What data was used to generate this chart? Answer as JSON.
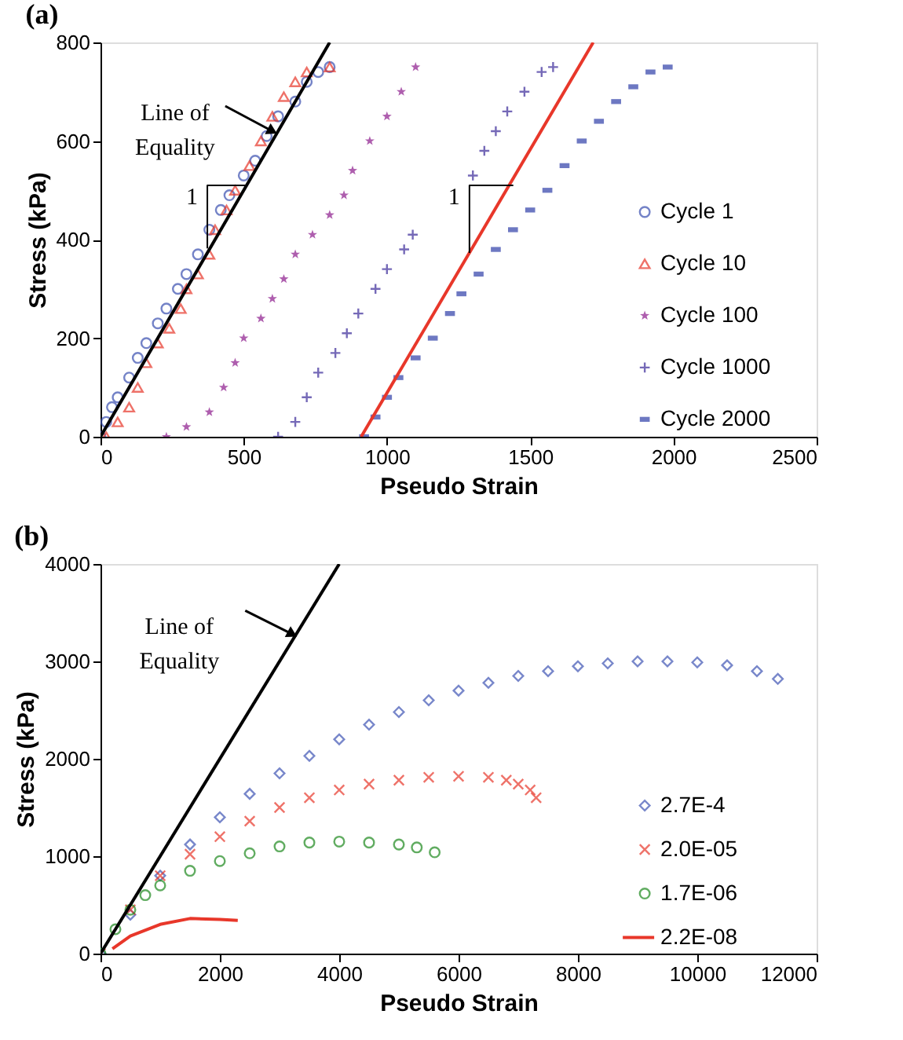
{
  "chart_data": [
    {
      "type": "scatter",
      "title": "(a)",
      "xlabel": "Pseudo Strain",
      "ylabel": "Stress (kPa)",
      "xlim": [
        0,
        2500
      ],
      "ylim": [
        0,
        800
      ],
      "xticks": [
        0,
        500,
        1000,
        1500,
        2000,
        2500
      ],
      "yticks": [
        0,
        200,
        400,
        600,
        800
      ],
      "grid": false,
      "legend": "right",
      "annotations": [
        {
          "text": "Line of\nEquality",
          "x": 600,
          "y": 620
        },
        {
          "text": "1",
          "x": 373,
          "y": 510
        },
        {
          "text": "1",
          "x": 1288,
          "y": 510
        }
      ],
      "series": [
        {
          "name": "Cycle 1",
          "color": "#3a4fb0",
          "marker": "circle",
          "x": [
            0,
            20,
            40,
            60,
            100,
            130,
            160,
            200,
            230,
            270,
            300,
            340,
            380,
            420,
            450,
            500,
            540,
            580,
            620,
            680,
            720,
            760,
            800
          ],
          "values": [
            0,
            30,
            60,
            80,
            120,
            160,
            190,
            230,
            260,
            300,
            330,
            370,
            420,
            460,
            490,
            530,
            560,
            610,
            650,
            680,
            720,
            740,
            750
          ]
        },
        {
          "name": "Cycle 10",
          "color": "#e8372a",
          "marker": "triangle",
          "x": [
            20,
            60,
            100,
            130,
            160,
            200,
            240,
            280,
            300,
            340,
            380,
            400,
            440,
            470,
            520,
            560,
            600,
            640,
            680,
            720,
            800
          ],
          "values": [
            0,
            30,
            60,
            100,
            150,
            190,
            220,
            260,
            300,
            330,
            370,
            420,
            460,
            500,
            550,
            600,
            650,
            690,
            720,
            740,
            750
          ]
        },
        {
          "name": "Cycle 100",
          "color": "#8b1a8b",
          "marker": "star",
          "x": [
            230,
            300,
            380,
            430,
            470,
            500,
            560,
            600,
            640,
            680,
            740,
            800,
            850,
            880,
            940,
            1000,
            1050,
            1100
          ],
          "values": [
            0,
            20,
            50,
            100,
            150,
            200,
            240,
            280,
            320,
            370,
            410,
            450,
            490,
            540,
            600,
            650,
            700,
            750
          ]
        },
        {
          "name": "Cycle 1000",
          "color": "#3b2a9a",
          "marker": "cross",
          "x": [
            620,
            680,
            720,
            760,
            820,
            860,
            900,
            960,
            1000,
            1060,
            1090,
            1300,
            1340,
            1380,
            1420,
            1480,
            1540,
            1580
          ],
          "values": [
            0,
            30,
            80,
            130,
            170,
            210,
            250,
            300,
            340,
            380,
            410,
            530,
            580,
            620,
            660,
            700,
            740,
            750
          ]
        },
        {
          "name": "Cycle 2000",
          "color": "#2f3fa8",
          "marker": "square",
          "x": [
            920,
            960,
            1000,
            1040,
            1100,
            1160,
            1220,
            1260,
            1320,
            1380,
            1440,
            1500,
            1560,
            1620,
            1680,
            1740,
            1800,
            1860,
            1920,
            1980
          ],
          "values": [
            0,
            40,
            80,
            120,
            160,
            200,
            250,
            290,
            330,
            380,
            420,
            460,
            500,
            550,
            600,
            640,
            680,
            710,
            740,
            750
          ]
        },
        {
          "type": "line",
          "color": "#000000",
          "x": [
            0,
            800
          ],
          "values": [
            0,
            800
          ]
        },
        {
          "type": "line",
          "color": "#e8372a",
          "x": [
            910,
            1720
          ],
          "values": [
            0,
            800
          ]
        },
        {
          "type": "line",
          "color": "#000000",
          "x": [
            510,
            373,
            373
          ],
          "values": [
            510,
            510,
            382
          ]
        },
        {
          "type": "line",
          "color": "#000000",
          "x": [
            1441,
            1288,
            1288
          ],
          "values": [
            510,
            510,
            373
          ]
        }
      ]
    },
    {
      "type": "scatter",
      "title": "(b)",
      "xlabel": "Pseudo Strain",
      "ylabel": "Stress (kPa)",
      "xlim": [
        0,
        12000
      ],
      "ylim": [
        0,
        4000
      ],
      "xticks": [
        0,
        2000,
        4000,
        6000,
        8000,
        10000,
        12000
      ],
      "yticks": [
        0,
        1000,
        2000,
        3000,
        4000
      ],
      "grid": false,
      "legend": "bottom right",
      "annotations": [
        "Line of\nEquality"
      ],
      "series": [
        {
          "name": "2.7E-4",
          "color": "#3f55b5",
          "marker": "diamond",
          "x": [
            0,
            500,
            1000,
            1500,
            2000,
            2500,
            3000,
            3500,
            4000,
            4500,
            5000,
            5500,
            6000,
            6500,
            7000,
            7500,
            8000,
            8500,
            9000,
            9500,
            10000,
            10500,
            11000,
            11350
          ],
          "values": [
            0,
            400,
            800,
            1120,
            1400,
            1640,
            1850,
            2030,
            2200,
            2350,
            2480,
            2600,
            2700,
            2780,
            2850,
            2900,
            2950,
            2980,
            3000,
            3000,
            2990,
            2960,
            2900,
            2820
          ]
        },
        {
          "name": "2.0E-05",
          "color": "#e8372a",
          "marker": "x",
          "x": [
            0,
            500,
            1000,
            1500,
            2000,
            2500,
            3000,
            3500,
            4000,
            4500,
            5000,
            5500,
            6000,
            6500,
            6800,
            7000,
            7200,
            7300
          ],
          "values": [
            0,
            450,
            800,
            1020,
            1200,
            1360,
            1500,
            1600,
            1680,
            1740,
            1780,
            1810,
            1820,
            1810,
            1780,
            1740,
            1680,
            1600
          ]
        },
        {
          "name": "1.7E-06",
          "color": "#1f8a1f",
          "marker": "circle",
          "x": [
            0,
            250,
            500,
            750,
            1000,
            1500,
            2000,
            2500,
            3000,
            3500,
            4000,
            4500,
            5000,
            5300,
            5600
          ],
          "values": [
            0,
            250,
            450,
            600,
            700,
            850,
            950,
            1030,
            1100,
            1140,
            1150,
            1140,
            1120,
            1090,
            1040
          ]
        },
        {
          "name": "2.2E-08",
          "type": "line",
          "color": "#e8372a",
          "x": [
            200,
            500,
            1000,
            1500,
            2000,
            2300
          ],
          "values": [
            50,
            180,
            300,
            360,
            350,
            340
          ]
        },
        {
          "type": "line",
          "color": "#000000",
          "x": [
            0,
            4000
          ],
          "values": [
            0,
            4000
          ]
        }
      ]
    }
  ]
}
